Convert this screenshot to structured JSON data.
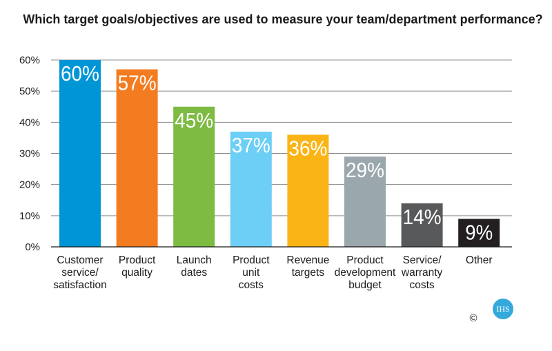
{
  "chart_data": {
    "type": "bar",
    "title": "Which target goals/objectives are used to measure your team/department performance?",
    "categories": [
      [
        "Customer",
        "service/",
        "satisfaction"
      ],
      [
        "Product",
        "quality"
      ],
      [
        "Launch",
        "dates"
      ],
      [
        "Product",
        "unit",
        "costs"
      ],
      [
        "Revenue",
        "targets"
      ],
      [
        "Product",
        "development",
        "budget"
      ],
      [
        "Service/",
        "warranty",
        "costs"
      ],
      [
        "Other"
      ]
    ],
    "values": [
      60,
      57,
      45,
      37,
      36,
      29,
      14,
      9
    ],
    "data_labels": [
      "60%",
      "57%",
      "45%",
      "37%",
      "36%",
      "29%",
      "14%",
      "9%"
    ],
    "bar_colors": [
      "#0096d6",
      "#f47c20",
      "#7dbb42",
      "#6dcff6",
      "#fbb416",
      "#9aa7ac",
      "#58595b",
      "#231f20"
    ],
    "yticks": [
      "0%",
      "10%",
      "20%",
      "30%",
      "40%",
      "50%",
      "60%"
    ],
    "ylim": [
      0,
      60
    ],
    "grid": true,
    "xlabel": "",
    "ylabel": ""
  },
  "footer": {
    "copyright": "©",
    "logo_text": "IHS",
    "logo_color": "#33a9dc"
  }
}
